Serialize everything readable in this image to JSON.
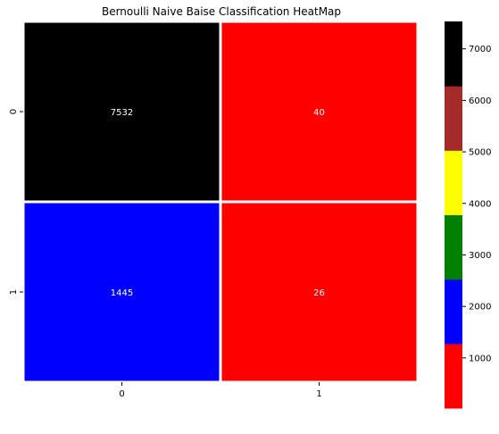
{
  "chart_data": {
    "type": "heatmap",
    "title": "Bernoulli Naive Baise Classification HeatMap",
    "x_categories": [
      "0",
      "1"
    ],
    "y_categories": [
      "0",
      "1"
    ],
    "matrix": [
      [
        7532,
        40
      ],
      [
        1445,
        26
      ]
    ],
    "annotations": [
      [
        "7532",
        "40"
      ],
      [
        "1445",
        "26"
      ]
    ],
    "colorbar": {
      "range": [
        26,
        7532
      ],
      "ticks": [
        1000,
        2000,
        3000,
        4000,
        5000,
        6000,
        7000
      ],
      "tick_labels": [
        "1000",
        "2000",
        "3000",
        "4000",
        "5000",
        "6000",
        "7000"
      ],
      "colors": [
        "#ff0000",
        "#0000ff",
        "#008000",
        "#ffff00",
        "#a52a2a",
        "#000000"
      ]
    },
    "grid_line_color": "#ffffff",
    "annotation_color": "#ffffff"
  }
}
